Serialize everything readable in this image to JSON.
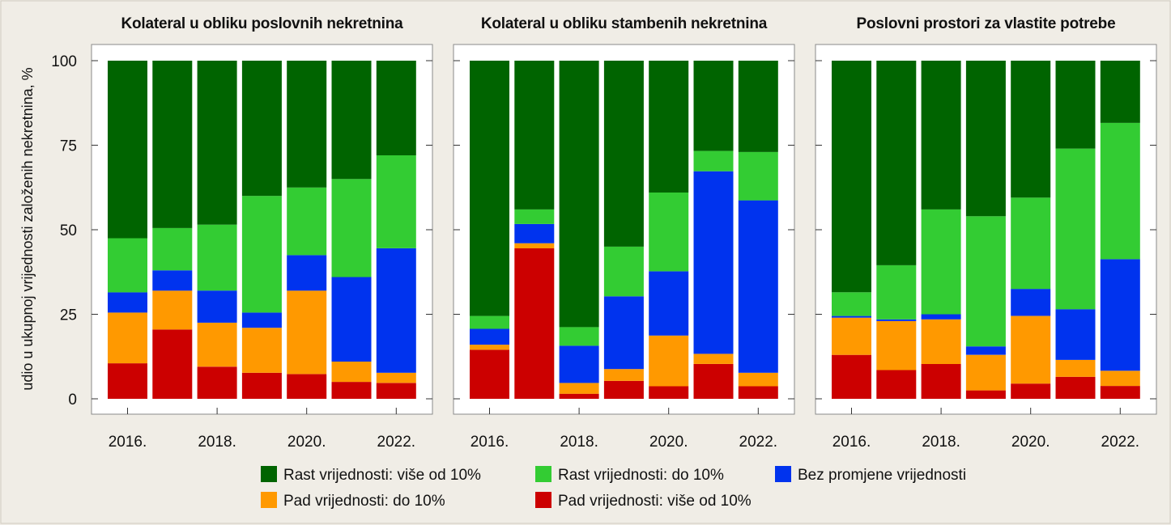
{
  "colors": {
    "rast_vise": "#006400",
    "rast_do": "#33cc33",
    "bez": "#0033ee",
    "pad_do": "#ff9900",
    "pad_vise": "#cc0000"
  },
  "y_axis_title": "udio u ukupnoj vrijednosti založenih nekretnina, %",
  "legend": [
    {
      "key": "rast_vise",
      "label": "Rast vrijednosti: više od 10%"
    },
    {
      "key": "rast_do",
      "label": "Rast vrijednosti: do 10%"
    },
    {
      "key": "bez",
      "label": "Bez promjene vrijednosti"
    },
    {
      "key": "pad_do",
      "label": "Pad vrijednosti: do 10%"
    },
    {
      "key": "pad_vise",
      "label": "Pad vrijednosti: više od 10%"
    }
  ],
  "chart_data": [
    {
      "type": "bar",
      "stacked": true,
      "title": "Kolateral u obliku poslovnih nekretnina",
      "x": [
        2016,
        2017,
        2018,
        2019,
        2020,
        2021,
        2022
      ],
      "x_tick_labels": [
        "2016.",
        "2018.",
        "2020.",
        "2022."
      ],
      "x_tick_years": [
        2016,
        2018,
        2020,
        2022
      ],
      "ylim": [
        0,
        100
      ],
      "y_ticks": [
        0,
        25,
        50,
        75,
        100
      ],
      "series": [
        {
          "name": "Pad vrijednosti: više od 10%",
          "key": "pad_vise",
          "values": [
            10.5,
            20.5,
            9.5,
            7.7,
            7.3,
            5.0,
            4.7
          ]
        },
        {
          "name": "Pad vrijednosti: do 10%",
          "key": "pad_do",
          "values": [
            15.0,
            11.5,
            13.0,
            13.3,
            24.7,
            6.0,
            3.0
          ]
        },
        {
          "name": "Bez promjene vrijednosti",
          "key": "bez",
          "values": [
            6.0,
            6.0,
            9.5,
            4.5,
            10.5,
            25.0,
            36.8
          ]
        },
        {
          "name": "Rast vrijednosti: do 10%",
          "key": "rast_do",
          "values": [
            16.0,
            12.5,
            19.5,
            34.5,
            20.0,
            29.0,
            27.5
          ]
        },
        {
          "name": "Rast vrijednosti: više od 10%",
          "key": "rast_vise",
          "values": [
            52.5,
            49.5,
            48.5,
            40.0,
            37.5,
            35.0,
            28.0
          ]
        }
      ]
    },
    {
      "type": "bar",
      "stacked": true,
      "title": "Kolateral u obliku stambenih nekretnina",
      "x": [
        2016,
        2017,
        2018,
        2019,
        2020,
        2021,
        2022
      ],
      "x_tick_labels": [
        "2016.",
        "2018.",
        "2020.",
        "2022."
      ],
      "x_tick_years": [
        2016,
        2018,
        2020,
        2022
      ],
      "ylim": [
        0,
        100
      ],
      "y_ticks": [
        0,
        25,
        50,
        75,
        100
      ],
      "series": [
        {
          "name": "Pad vrijednosti: više od 10%",
          "key": "pad_vise",
          "values": [
            14.5,
            44.5,
            1.5,
            5.3,
            3.7,
            10.3,
            3.7
          ]
        },
        {
          "name": "Pad vrijednosti: do 10%",
          "key": "pad_do",
          "values": [
            1.5,
            1.5,
            3.2,
            3.5,
            15.0,
            3.0,
            4.0
          ]
        },
        {
          "name": "Bez promjene vrijednosti",
          "key": "bez",
          "values": [
            4.7,
            5.7,
            11.0,
            21.5,
            19.0,
            54.0,
            51.0
          ]
        },
        {
          "name": "Rast vrijednosti: do 10%",
          "key": "rast_do",
          "values": [
            3.8,
            4.3,
            5.5,
            14.7,
            23.3,
            6.0,
            14.3
          ]
        },
        {
          "name": "Rast vrijednosti: više od 10%",
          "key": "rast_vise",
          "values": [
            75.5,
            44.0,
            78.8,
            55.0,
            39.0,
            26.7,
            27.0
          ]
        }
      ]
    },
    {
      "type": "bar",
      "stacked": true,
      "title": "Poslovni prostori za vlastite potrebe",
      "x": [
        2016,
        2017,
        2018,
        2019,
        2020,
        2021,
        2022
      ],
      "x_tick_labels": [
        "2016.",
        "2018.",
        "2020.",
        "2022."
      ],
      "x_tick_years": [
        2016,
        2018,
        2020,
        2022
      ],
      "ylim": [
        0,
        100
      ],
      "y_ticks": [
        0,
        25,
        50,
        75,
        100
      ],
      "series": [
        {
          "name": "Pad vrijednosti: više od 10%",
          "key": "pad_vise",
          "values": [
            13.0,
            8.5,
            10.3,
            2.5,
            4.5,
            6.5,
            3.8
          ]
        },
        {
          "name": "Pad vrijednosti: do 10%",
          "key": "pad_do",
          "values": [
            11.0,
            14.5,
            13.2,
            10.5,
            20.0,
            5.0,
            4.5
          ]
        },
        {
          "name": "Bez promjene vrijednosti",
          "key": "bez",
          "values": [
            0.5,
            0.5,
            1.5,
            2.5,
            8.0,
            15.0,
            33.0
          ]
        },
        {
          "name": "Rast vrijednosti: do 10%",
          "key": "rast_do",
          "values": [
            7.0,
            16.0,
            31.0,
            38.5,
            27.0,
            47.5,
            40.3
          ]
        },
        {
          "name": "Rast vrijednosti: više od 10%",
          "key": "rast_vise",
          "values": [
            68.5,
            60.5,
            44.0,
            46.0,
            40.5,
            26.0,
            18.4
          ]
        }
      ]
    }
  ]
}
